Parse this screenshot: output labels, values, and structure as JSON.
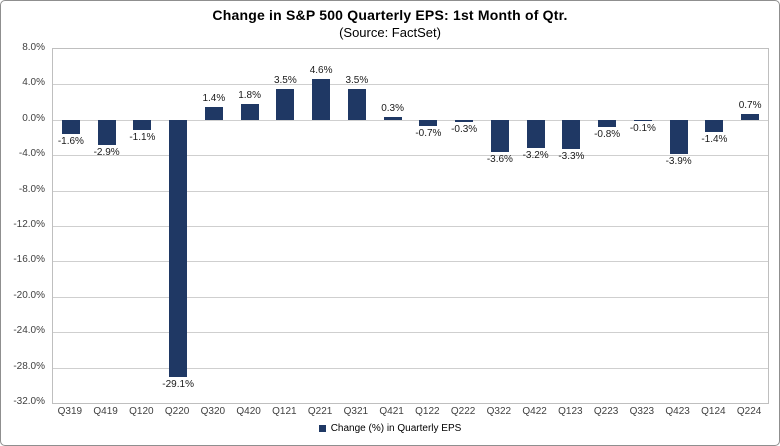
{
  "chart": {
    "title": "Change in S&P 500 Quarterly EPS: 1st Month of Qtr.",
    "subtitle": "(Source: FactSet)",
    "legend_label": "Change (%) in Quarterly EPS"
  },
  "colors": {
    "bar": "#1F3864",
    "gridline": "#CFCFCF",
    "plot_border": "#BFBFBF",
    "axis_text": "#404040",
    "data_label_text": "#1A1A1A"
  },
  "chart_data": {
    "type": "bar",
    "title": "Change in S&P 500 Quarterly EPS: 1st Month of Qtr.",
    "subtitle": "(Source: FactSet)",
    "categories": [
      "Q319",
      "Q419",
      "Q120",
      "Q220",
      "Q320",
      "Q420",
      "Q121",
      "Q221",
      "Q321",
      "Q421",
      "Q122",
      "Q222",
      "Q322",
      "Q422",
      "Q123",
      "Q223",
      "Q323",
      "Q423",
      "Q124",
      "Q224"
    ],
    "series": [
      {
        "name": "Change (%) in Quarterly EPS",
        "values": [
          -1.6,
          -2.9,
          -1.1,
          -29.1,
          1.4,
          1.8,
          3.5,
          4.6,
          3.5,
          0.3,
          -0.7,
          -0.3,
          -3.6,
          -3.2,
          -3.3,
          -0.8,
          -0.1,
          -3.9,
          -1.4,
          0.7
        ],
        "labels": [
          "-1.6%",
          "-2.9%",
          "-1.1%",
          "-29.1%",
          "1.4%",
          "1.8%",
          "3.5%",
          "4.6%",
          "3.5%",
          "0.3%",
          "-0.7%",
          "-0.3%",
          "-3.6%",
          "-3.2%",
          "-3.3%",
          "-0.8%",
          "-0.1%",
          "-3.9%",
          "-1.4%",
          "0.7%"
        ]
      }
    ],
    "xlabel": "",
    "ylabel": "",
    "ylim": [
      -32,
      8
    ],
    "ytick_step": 4,
    "ytick_labels": [
      "8.0%",
      "4.0%",
      "0.0%",
      "-4.0%",
      "-8.0%",
      "-12.0%",
      "-16.0%",
      "-20.0%",
      "-24.0%",
      "-28.0%",
      "-32.0%"
    ],
    "grid": true,
    "legend_position": "bottom"
  }
}
